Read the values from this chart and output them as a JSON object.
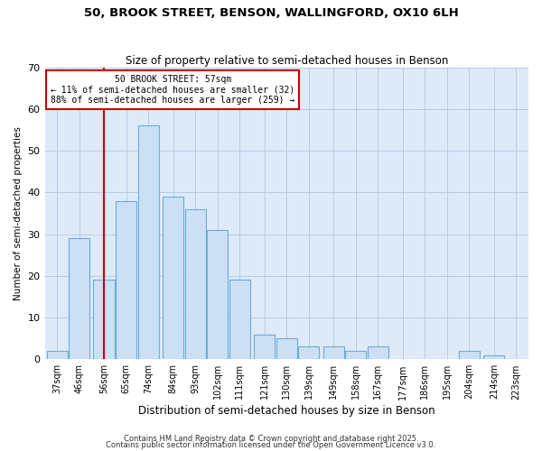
{
  "title": "50, BROOK STREET, BENSON, WALLINGFORD, OX10 6LH",
  "subtitle": "Size of property relative to semi-detached houses in Benson",
  "xlabel": "Distribution of semi-detached houses by size in Benson",
  "ylabel": "Number of semi-detached properties",
  "bin_labels": [
    "37sqm",
    "46sqm",
    "56sqm",
    "65sqm",
    "74sqm",
    "84sqm",
    "93sqm",
    "102sqm",
    "111sqm",
    "121sqm",
    "130sqm",
    "139sqm",
    "149sqm",
    "158sqm",
    "167sqm",
    "177sqm",
    "186sqm",
    "195sqm",
    "204sqm",
    "214sqm",
    "223sqm"
  ],
  "bin_centers": [
    37,
    46,
    56,
    65,
    74,
    84,
    93,
    102,
    111,
    121,
    130,
    139,
    149,
    158,
    167,
    177,
    186,
    195,
    204,
    214,
    223
  ],
  "counts": [
    2,
    29,
    19,
    38,
    56,
    39,
    36,
    31,
    19,
    6,
    5,
    3,
    3,
    2,
    3,
    0,
    0,
    0,
    2,
    1,
    0
  ],
  "bar_width": 8.5,
  "property_label": "50 BROOK STREET: 57sqm",
  "pct_smaller": 11,
  "n_smaller": 32,
  "pct_larger": 88,
  "n_larger": 259,
  "bar_color": "#cce0f5",
  "bar_edge_color": "#6aadd5",
  "vline_color": "#cc0000",
  "vline_x": 56,
  "annotation_box_edge_color": "#cc0000",
  "ylim": [
    0,
    70
  ],
  "yticks": [
    0,
    10,
    20,
    30,
    40,
    50,
    60,
    70
  ],
  "plot_bg_color": "#deeaf8",
  "grid_color": "#b8cce4",
  "footer1": "Contains HM Land Registry data © Crown copyright and database right 2025.",
  "footer2": "Contains public sector information licensed under the Open Government Licence v3.0."
}
